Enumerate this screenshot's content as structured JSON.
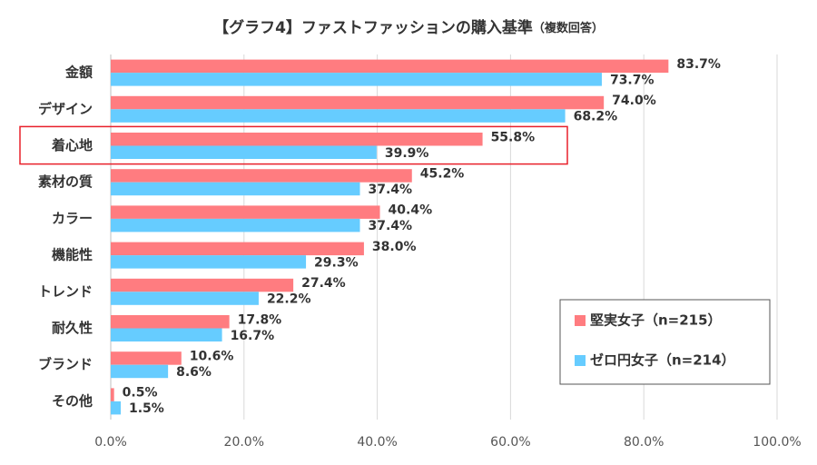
{
  "chart_data": {
    "type": "bar",
    "orientation": "horizontal",
    "title": "【グラフ4】ファストファッションの購入基準",
    "subtitle": "（複数回答）",
    "categories": [
      "金額",
      "デザイン",
      "着心地",
      "素材の質",
      "カラー",
      "機能性",
      "トレンド",
      "耐久性",
      "ブランド",
      "その他"
    ],
    "series": [
      {
        "name": "堅実女子（n=215）",
        "color": "#ff7c80",
        "values": [
          83.7,
          74.0,
          55.8,
          45.2,
          40.4,
          38.0,
          27.4,
          17.8,
          10.6,
          0.5
        ],
        "value_labels": [
          "83.7%",
          "74.0%",
          "55.8%",
          "45.2%",
          "40.4%",
          "38.0%",
          "27.4%",
          "17.8%",
          "10.6%",
          "0.5%"
        ]
      },
      {
        "name": "ゼロ円女子（n=214）",
        "color": "#66ccff",
        "values": [
          73.7,
          68.2,
          39.9,
          37.4,
          37.4,
          29.3,
          22.2,
          16.7,
          8.6,
          1.5
        ],
        "value_labels": [
          "73.7%",
          "68.2%",
          "39.9%",
          "37.4%",
          "37.4%",
          "29.3%",
          "22.2%",
          "16.7%",
          "8.6%",
          "1.5%"
        ]
      }
    ],
    "xlim": [
      0,
      100
    ],
    "xticks": [
      {
        "value": 0,
        "label": "0.0%"
      },
      {
        "value": 20,
        "label": "20.0%"
      },
      {
        "value": 40,
        "label": "40.0%"
      },
      {
        "value": 60,
        "label": "60.0%"
      },
      {
        "value": 80,
        "label": "80.0%"
      },
      {
        "value": 100,
        "label": "100.0%"
      }
    ],
    "grid": true,
    "legend": "lower right"
  }
}
